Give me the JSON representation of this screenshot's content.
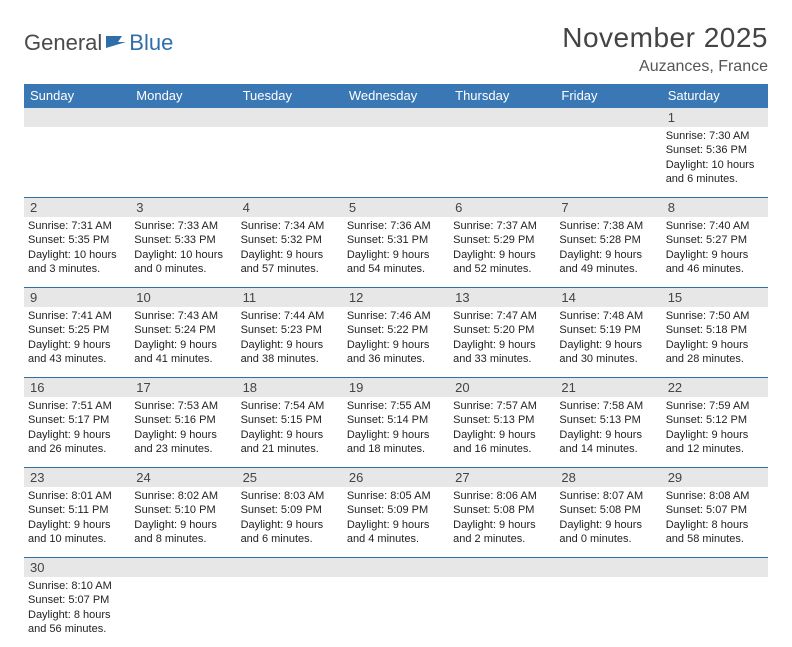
{
  "logo": {
    "word1": "General",
    "word2": "Blue"
  },
  "title": "November 2025",
  "location": "Auzances, France",
  "colors": {
    "header_bg": "#3a78b5",
    "header_text": "#ffffff",
    "daynum_bg": "#e7e7e7",
    "week_border": "#2f6fa8",
    "title_color": "#444444",
    "body_text": "#222222"
  },
  "fonts": {
    "title_size": 28,
    "location_size": 16,
    "dow_size": 13,
    "cell_size": 11
  },
  "days_of_week": [
    "Sunday",
    "Monday",
    "Tuesday",
    "Wednesday",
    "Thursday",
    "Friday",
    "Saturday"
  ],
  "weeks": [
    [
      null,
      null,
      null,
      null,
      null,
      null,
      {
        "n": "1",
        "sr": "Sunrise: 7:30 AM",
        "ss": "Sunset: 5:36 PM",
        "d1": "Daylight: 10 hours",
        "d2": "and 6 minutes."
      }
    ],
    [
      {
        "n": "2",
        "sr": "Sunrise: 7:31 AM",
        "ss": "Sunset: 5:35 PM",
        "d1": "Daylight: 10 hours",
        "d2": "and 3 minutes."
      },
      {
        "n": "3",
        "sr": "Sunrise: 7:33 AM",
        "ss": "Sunset: 5:33 PM",
        "d1": "Daylight: 10 hours",
        "d2": "and 0 minutes."
      },
      {
        "n": "4",
        "sr": "Sunrise: 7:34 AM",
        "ss": "Sunset: 5:32 PM",
        "d1": "Daylight: 9 hours",
        "d2": "and 57 minutes."
      },
      {
        "n": "5",
        "sr": "Sunrise: 7:36 AM",
        "ss": "Sunset: 5:31 PM",
        "d1": "Daylight: 9 hours",
        "d2": "and 54 minutes."
      },
      {
        "n": "6",
        "sr": "Sunrise: 7:37 AM",
        "ss": "Sunset: 5:29 PM",
        "d1": "Daylight: 9 hours",
        "d2": "and 52 minutes."
      },
      {
        "n": "7",
        "sr": "Sunrise: 7:38 AM",
        "ss": "Sunset: 5:28 PM",
        "d1": "Daylight: 9 hours",
        "d2": "and 49 minutes."
      },
      {
        "n": "8",
        "sr": "Sunrise: 7:40 AM",
        "ss": "Sunset: 5:27 PM",
        "d1": "Daylight: 9 hours",
        "d2": "and 46 minutes."
      }
    ],
    [
      {
        "n": "9",
        "sr": "Sunrise: 7:41 AM",
        "ss": "Sunset: 5:25 PM",
        "d1": "Daylight: 9 hours",
        "d2": "and 43 minutes."
      },
      {
        "n": "10",
        "sr": "Sunrise: 7:43 AM",
        "ss": "Sunset: 5:24 PM",
        "d1": "Daylight: 9 hours",
        "d2": "and 41 minutes."
      },
      {
        "n": "11",
        "sr": "Sunrise: 7:44 AM",
        "ss": "Sunset: 5:23 PM",
        "d1": "Daylight: 9 hours",
        "d2": "and 38 minutes."
      },
      {
        "n": "12",
        "sr": "Sunrise: 7:46 AM",
        "ss": "Sunset: 5:22 PM",
        "d1": "Daylight: 9 hours",
        "d2": "and 36 minutes."
      },
      {
        "n": "13",
        "sr": "Sunrise: 7:47 AM",
        "ss": "Sunset: 5:20 PM",
        "d1": "Daylight: 9 hours",
        "d2": "and 33 minutes."
      },
      {
        "n": "14",
        "sr": "Sunrise: 7:48 AM",
        "ss": "Sunset: 5:19 PM",
        "d1": "Daylight: 9 hours",
        "d2": "and 30 minutes."
      },
      {
        "n": "15",
        "sr": "Sunrise: 7:50 AM",
        "ss": "Sunset: 5:18 PM",
        "d1": "Daylight: 9 hours",
        "d2": "and 28 minutes."
      }
    ],
    [
      {
        "n": "16",
        "sr": "Sunrise: 7:51 AM",
        "ss": "Sunset: 5:17 PM",
        "d1": "Daylight: 9 hours",
        "d2": "and 26 minutes."
      },
      {
        "n": "17",
        "sr": "Sunrise: 7:53 AM",
        "ss": "Sunset: 5:16 PM",
        "d1": "Daylight: 9 hours",
        "d2": "and 23 minutes."
      },
      {
        "n": "18",
        "sr": "Sunrise: 7:54 AM",
        "ss": "Sunset: 5:15 PM",
        "d1": "Daylight: 9 hours",
        "d2": "and 21 minutes."
      },
      {
        "n": "19",
        "sr": "Sunrise: 7:55 AM",
        "ss": "Sunset: 5:14 PM",
        "d1": "Daylight: 9 hours",
        "d2": "and 18 minutes."
      },
      {
        "n": "20",
        "sr": "Sunrise: 7:57 AM",
        "ss": "Sunset: 5:13 PM",
        "d1": "Daylight: 9 hours",
        "d2": "and 16 minutes."
      },
      {
        "n": "21",
        "sr": "Sunrise: 7:58 AM",
        "ss": "Sunset: 5:13 PM",
        "d1": "Daylight: 9 hours",
        "d2": "and 14 minutes."
      },
      {
        "n": "22",
        "sr": "Sunrise: 7:59 AM",
        "ss": "Sunset: 5:12 PM",
        "d1": "Daylight: 9 hours",
        "d2": "and 12 minutes."
      }
    ],
    [
      {
        "n": "23",
        "sr": "Sunrise: 8:01 AM",
        "ss": "Sunset: 5:11 PM",
        "d1": "Daylight: 9 hours",
        "d2": "and 10 minutes."
      },
      {
        "n": "24",
        "sr": "Sunrise: 8:02 AM",
        "ss": "Sunset: 5:10 PM",
        "d1": "Daylight: 9 hours",
        "d2": "and 8 minutes."
      },
      {
        "n": "25",
        "sr": "Sunrise: 8:03 AM",
        "ss": "Sunset: 5:09 PM",
        "d1": "Daylight: 9 hours",
        "d2": "and 6 minutes."
      },
      {
        "n": "26",
        "sr": "Sunrise: 8:05 AM",
        "ss": "Sunset: 5:09 PM",
        "d1": "Daylight: 9 hours",
        "d2": "and 4 minutes."
      },
      {
        "n": "27",
        "sr": "Sunrise: 8:06 AM",
        "ss": "Sunset: 5:08 PM",
        "d1": "Daylight: 9 hours",
        "d2": "and 2 minutes."
      },
      {
        "n": "28",
        "sr": "Sunrise: 8:07 AM",
        "ss": "Sunset: 5:08 PM",
        "d1": "Daylight: 9 hours",
        "d2": "and 0 minutes."
      },
      {
        "n": "29",
        "sr": "Sunrise: 8:08 AM",
        "ss": "Sunset: 5:07 PM",
        "d1": "Daylight: 8 hours",
        "d2": "and 58 minutes."
      }
    ],
    [
      {
        "n": "30",
        "sr": "Sunrise: 8:10 AM",
        "ss": "Sunset: 5:07 PM",
        "d1": "Daylight: 8 hours",
        "d2": "and 56 minutes."
      },
      null,
      null,
      null,
      null,
      null,
      null
    ]
  ]
}
